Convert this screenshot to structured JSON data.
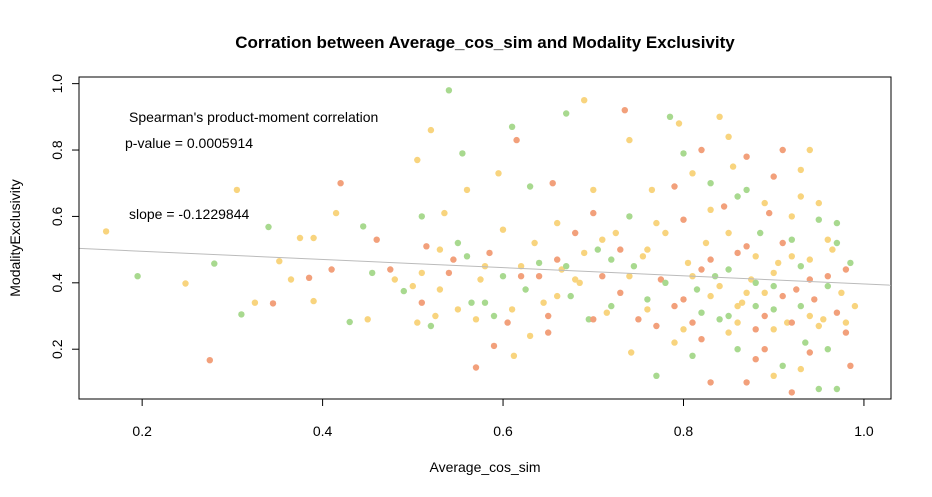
{
  "chart_data": {
    "type": "scatter",
    "title": "Corration between Average_cos_sim and Modality Exclusivity",
    "xlabel": "Average_cos_sim",
    "ylabel": "ModalityExclusivity",
    "xlim": [
      0.13,
      1.03
    ],
    "ylim": [
      0.05,
      1.02
    ],
    "xticks": [
      "0.2",
      "0.4",
      "0.6",
      "0.8",
      "1.0"
    ],
    "yticks": [
      "0.2",
      "0.4",
      "0.6",
      "0.8",
      "1.0"
    ],
    "annotations": {
      "method": "Spearman's product-moment correlation",
      "pvalue": "p-value = 0.0005914",
      "slope": "slope = -0.1229844"
    },
    "colors": {
      "orange": "#F2A07B",
      "green": "#A8D98F",
      "yellow": "#F8D47E",
      "regression": "#BBBBBB"
    },
    "regression": {
      "slope": -0.1229844,
      "intercept": 0.5196
    },
    "points": [
      [
        0.16,
        0.555,
        "y"
      ],
      [
        0.195,
        0.42,
        "g"
      ],
      [
        0.248,
        0.398,
        "y"
      ],
      [
        0.275,
        0.167,
        "o"
      ],
      [
        0.28,
        0.458,
        "g"
      ],
      [
        0.305,
        0.68,
        "y"
      ],
      [
        0.31,
        0.305,
        "g"
      ],
      [
        0.325,
        0.34,
        "y"
      ],
      [
        0.34,
        0.568,
        "g"
      ],
      [
        0.345,
        0.338,
        "o"
      ],
      [
        0.352,
        0.465,
        "y"
      ],
      [
        0.365,
        0.41,
        "y"
      ],
      [
        0.375,
        0.535,
        "y"
      ],
      [
        0.385,
        0.415,
        "o"
      ],
      [
        0.39,
        0.345,
        "y"
      ],
      [
        0.39,
        0.535,
        "y"
      ],
      [
        0.41,
        0.44,
        "o"
      ],
      [
        0.415,
        0.61,
        "y"
      ],
      [
        0.42,
        0.7,
        "o"
      ],
      [
        0.43,
        0.282,
        "g"
      ],
      [
        0.445,
        0.57,
        "g"
      ],
      [
        0.45,
        0.29,
        "y"
      ],
      [
        0.455,
        0.43,
        "g"
      ],
      [
        0.46,
        0.53,
        "o"
      ],
      [
        0.475,
        0.44,
        "o"
      ],
      [
        0.48,
        0.41,
        "y"
      ],
      [
        0.49,
        0.375,
        "g"
      ],
      [
        0.5,
        0.39,
        "y"
      ],
      [
        0.505,
        0.77,
        "y"
      ],
      [
        0.51,
        0.6,
        "g"
      ],
      [
        0.51,
        0.34,
        "o"
      ],
      [
        0.52,
        0.86,
        "y"
      ],
      [
        0.52,
        0.27,
        "g"
      ],
      [
        0.525,
        0.3,
        "y"
      ],
      [
        0.53,
        0.5,
        "y"
      ],
      [
        0.535,
        0.61,
        "y"
      ],
      [
        0.54,
        0.98,
        "g"
      ],
      [
        0.545,
        0.47,
        "o"
      ],
      [
        0.55,
        0.52,
        "g"
      ],
      [
        0.555,
        0.79,
        "g"
      ],
      [
        0.56,
        0.68,
        "y"
      ],
      [
        0.565,
        0.34,
        "g"
      ],
      [
        0.57,
        0.145,
        "o"
      ],
      [
        0.575,
        0.41,
        "y"
      ],
      [
        0.58,
        0.34,
        "g"
      ],
      [
        0.585,
        0.49,
        "o"
      ],
      [
        0.59,
        0.3,
        "g"
      ],
      [
        0.595,
        0.73,
        "y"
      ],
      [
        0.6,
        0.56,
        "y"
      ],
      [
        0.605,
        0.28,
        "o"
      ],
      [
        0.61,
        0.87,
        "g"
      ],
      [
        0.612,
        0.18,
        "y"
      ],
      [
        0.615,
        0.83,
        "o"
      ],
      [
        0.62,
        0.42,
        "o"
      ],
      [
        0.625,
        0.38,
        "g"
      ],
      [
        0.63,
        0.69,
        "g"
      ],
      [
        0.635,
        0.52,
        "y"
      ],
      [
        0.64,
        0.46,
        "g"
      ],
      [
        0.645,
        0.34,
        "y"
      ],
      [
        0.65,
        0.25,
        "o"
      ],
      [
        0.655,
        0.7,
        "o"
      ],
      [
        0.66,
        0.47,
        "o"
      ],
      [
        0.665,
        0.44,
        "y"
      ],
      [
        0.67,
        0.91,
        "g"
      ],
      [
        0.675,
        0.36,
        "g"
      ],
      [
        0.68,
        0.55,
        "o"
      ],
      [
        0.685,
        0.4,
        "y"
      ],
      [
        0.69,
        0.95,
        "y"
      ],
      [
        0.695,
        0.29,
        "g"
      ],
      [
        0.7,
        0.68,
        "y"
      ],
      [
        0.705,
        0.5,
        "g"
      ],
      [
        0.71,
        0.42,
        "o"
      ],
      [
        0.715,
        0.31,
        "y"
      ],
      [
        0.72,
        0.47,
        "g"
      ],
      [
        0.725,
        0.55,
        "y"
      ],
      [
        0.73,
        0.37,
        "o"
      ],
      [
        0.735,
        0.92,
        "o"
      ],
      [
        0.74,
        0.83,
        "y"
      ],
      [
        0.742,
        0.19,
        "y"
      ],
      [
        0.745,
        0.45,
        "g"
      ],
      [
        0.75,
        0.29,
        "o"
      ],
      [
        0.755,
        0.48,
        "y"
      ],
      [
        0.76,
        0.35,
        "g"
      ],
      [
        0.765,
        0.68,
        "y"
      ],
      [
        0.77,
        0.12,
        "g"
      ],
      [
        0.775,
        0.41,
        "o"
      ],
      [
        0.78,
        0.55,
        "y"
      ],
      [
        0.785,
        0.9,
        "g"
      ],
      [
        0.79,
        0.33,
        "o"
      ],
      [
        0.795,
        0.88,
        "y"
      ],
      [
        0.8,
        0.79,
        "g"
      ],
      [
        0.805,
        0.46,
        "y"
      ],
      [
        0.81,
        0.28,
        "o"
      ],
      [
        0.815,
        0.38,
        "g"
      ],
      [
        0.82,
        0.8,
        "o"
      ],
      [
        0.825,
        0.52,
        "y"
      ],
      [
        0.83,
        0.36,
        "y"
      ],
      [
        0.835,
        0.42,
        "g"
      ],
      [
        0.84,
        0.9,
        "y"
      ],
      [
        0.845,
        0.63,
        "o"
      ],
      [
        0.85,
        0.3,
        "g"
      ],
      [
        0.855,
        0.75,
        "y"
      ],
      [
        0.86,
        0.49,
        "o"
      ],
      [
        0.865,
        0.34,
        "y"
      ],
      [
        0.87,
        0.68,
        "g"
      ],
      [
        0.875,
        0.41,
        "y"
      ],
      [
        0.88,
        0.26,
        "o"
      ],
      [
        0.885,
        0.55,
        "g"
      ],
      [
        0.89,
        0.37,
        "y"
      ],
      [
        0.895,
        0.61,
        "o"
      ],
      [
        0.9,
        0.32,
        "g"
      ],
      [
        0.905,
        0.46,
        "y"
      ],
      [
        0.91,
        0.8,
        "o"
      ],
      [
        0.915,
        0.28,
        "y"
      ],
      [
        0.92,
        0.53,
        "g"
      ],
      [
        0.925,
        0.38,
        "o"
      ],
      [
        0.93,
        0.66,
        "y"
      ],
      [
        0.935,
        0.22,
        "g"
      ],
      [
        0.94,
        0.47,
        "y"
      ],
      [
        0.945,
        0.35,
        "o"
      ],
      [
        0.95,
        0.59,
        "g"
      ],
      [
        0.955,
        0.29,
        "y"
      ],
      [
        0.96,
        0.42,
        "o"
      ],
      [
        0.965,
        0.5,
        "y"
      ],
      [
        0.97,
        0.08,
        "g"
      ],
      [
        0.975,
        0.37,
        "y"
      ],
      [
        0.98,
        0.25,
        "o"
      ],
      [
        0.985,
        0.46,
        "g"
      ],
      [
        0.985,
        0.15,
        "o"
      ],
      [
        0.99,
        0.33,
        "y"
      ],
      [
        0.8,
        0.35,
        "o"
      ],
      [
        0.81,
        0.42,
        "y"
      ],
      [
        0.82,
        0.31,
        "g"
      ],
      [
        0.83,
        0.47,
        "o"
      ],
      [
        0.84,
        0.39,
        "y"
      ],
      [
        0.85,
        0.44,
        "g"
      ],
      [
        0.86,
        0.33,
        "y"
      ],
      [
        0.87,
        0.51,
        "o"
      ],
      [
        0.88,
        0.4,
        "g"
      ],
      [
        0.89,
        0.3,
        "o"
      ],
      [
        0.9,
        0.43,
        "y"
      ],
      [
        0.91,
        0.36,
        "o"
      ],
      [
        0.92,
        0.48,
        "y"
      ],
      [
        0.93,
        0.33,
        "g"
      ],
      [
        0.94,
        0.41,
        "o"
      ],
      [
        0.95,
        0.27,
        "y"
      ],
      [
        0.96,
        0.39,
        "g"
      ],
      [
        0.97,
        0.31,
        "o"
      ],
      [
        0.86,
        0.2,
        "g"
      ],
      [
        0.88,
        0.17,
        "o"
      ],
      [
        0.9,
        0.12,
        "y"
      ],
      [
        0.92,
        0.07,
        "o"
      ],
      [
        0.87,
        0.1,
        "o"
      ],
      [
        0.83,
        0.1,
        "o"
      ],
      [
        0.95,
        0.08,
        "g"
      ],
      [
        0.91,
        0.15,
        "g"
      ],
      [
        0.93,
        0.14,
        "y"
      ],
      [
        0.89,
        0.2,
        "o"
      ],
      [
        0.85,
        0.25,
        "y"
      ],
      [
        0.94,
        0.19,
        "o"
      ],
      [
        0.79,
        0.22,
        "y"
      ],
      [
        0.81,
        0.18,
        "g"
      ],
      [
        0.77,
        0.27,
        "o"
      ],
      [
        0.76,
        0.32,
        "y"
      ],
      [
        0.78,
        0.4,
        "g"
      ],
      [
        0.74,
        0.42,
        "y"
      ],
      [
        0.72,
        0.33,
        "g"
      ],
      [
        0.7,
        0.29,
        "o"
      ],
      [
        0.68,
        0.41,
        "y"
      ],
      [
        0.66,
        0.36,
        "y"
      ],
      [
        0.64,
        0.42,
        "o"
      ],
      [
        0.62,
        0.45,
        "y"
      ],
      [
        0.6,
        0.42,
        "g"
      ],
      [
        0.58,
        0.45,
        "y"
      ],
      [
        0.56,
        0.48,
        "g"
      ],
      [
        0.54,
        0.43,
        "o"
      ],
      [
        0.66,
        0.58,
        "y"
      ],
      [
        0.7,
        0.61,
        "o"
      ],
      [
        0.74,
        0.6,
        "g"
      ],
      [
        0.77,
        0.58,
        "y"
      ],
      [
        0.8,
        0.59,
        "o"
      ],
      [
        0.83,
        0.62,
        "y"
      ],
      [
        0.86,
        0.66,
        "g"
      ],
      [
        0.89,
        0.64,
        "y"
      ],
      [
        0.92,
        0.6,
        "y"
      ],
      [
        0.95,
        0.64,
        "y"
      ],
      [
        0.97,
        0.58,
        "g"
      ],
      [
        0.85,
        0.55,
        "y"
      ],
      [
        0.88,
        0.48,
        "y"
      ],
      [
        0.91,
        0.52,
        "o"
      ],
      [
        0.93,
        0.45,
        "g"
      ],
      [
        0.96,
        0.53,
        "y"
      ],
      [
        0.82,
        0.44,
        "o"
      ],
      [
        0.84,
        0.29,
        "g"
      ],
      [
        0.87,
        0.37,
        "y"
      ],
      [
        0.9,
        0.39,
        "g"
      ],
      [
        0.92,
        0.28,
        "o"
      ],
      [
        0.94,
        0.3,
        "y"
      ],
      [
        0.96,
        0.2,
        "g"
      ],
      [
        0.98,
        0.28,
        "y"
      ],
      [
        0.8,
        0.26,
        "y"
      ],
      [
        0.82,
        0.23,
        "o"
      ],
      [
        0.86,
        0.28,
        "y"
      ],
      [
        0.88,
        0.33,
        "g"
      ],
      [
        0.9,
        0.26,
        "y"
      ],
      [
        0.76,
        0.5,
        "y"
      ],
      [
        0.73,
        0.5,
        "o"
      ],
      [
        0.71,
        0.53,
        "y"
      ],
      [
        0.69,
        0.49,
        "y"
      ],
      [
        0.67,
        0.45,
        "g"
      ],
      [
        0.65,
        0.3,
        "o"
      ],
      [
        0.63,
        0.24,
        "y"
      ],
      [
        0.61,
        0.32,
        "y"
      ],
      [
        0.59,
        0.21,
        "o"
      ],
      [
        0.57,
        0.29,
        "y"
      ],
      [
        0.55,
        0.32,
        "y"
      ],
      [
        0.53,
        0.38,
        "y"
      ],
      [
        0.51,
        0.43,
        "y"
      ],
      [
        0.505,
        0.28,
        "y"
      ],
      [
        0.515,
        0.51,
        "o"
      ],
      [
        0.79,
        0.69,
        "o"
      ],
      [
        0.81,
        0.73,
        "y"
      ],
      [
        0.83,
        0.7,
        "g"
      ],
      [
        0.85,
        0.84,
        "y"
      ],
      [
        0.87,
        0.78,
        "o"
      ],
      [
        0.9,
        0.72,
        "o"
      ],
      [
        0.93,
        0.74,
        "y"
      ],
      [
        0.94,
        0.8,
        "y"
      ],
      [
        0.97,
        0.52,
        "g"
      ],
      [
        0.98,
        0.44,
        "o"
      ]
    ]
  }
}
